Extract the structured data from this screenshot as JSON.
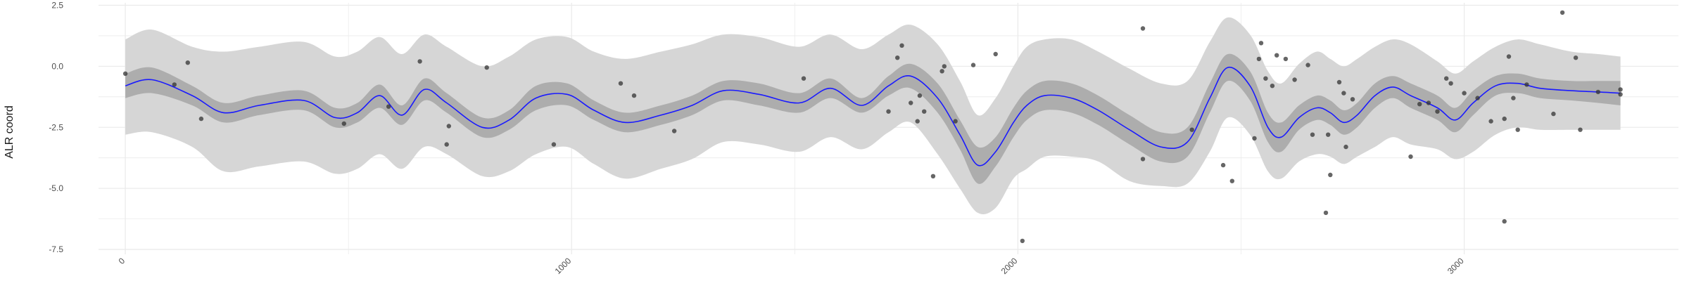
{
  "chart_data": {
    "type": "line",
    "title": "",
    "xlabel": "",
    "ylabel": "ALR coord",
    "xlim": [
      -60,
      3480
    ],
    "ylim": [
      -7.7,
      2.6
    ],
    "grid": true,
    "legend": "none",
    "x_ticks": [
      0,
      1000,
      2000,
      3000
    ],
    "x_tick_labels": [
      "0",
      "1000",
      "2000",
      "3000"
    ],
    "y_ticks": [
      2.5,
      0.0,
      -2.5,
      -5.0,
      -7.5
    ],
    "y_tick_labels": [
      "2.5",
      "0.0",
      "-2.5",
      "-5.0",
      "-7.5"
    ],
    "colors": {
      "line": "#1a1aff",
      "inner_band": "#adadad",
      "outer_band": "#d6d6d6",
      "points": "#333333",
      "grid": "#ebebeb"
    },
    "series": [
      {
        "kind": "smooth",
        "x": [
          0,
          60,
          150,
          220,
          300,
          400,
          470,
          520,
          570,
          620,
          670,
          720,
          800,
          860,
          920,
          990,
          1050,
          1120,
          1200,
          1270,
          1340,
          1420,
          1510,
          1580,
          1650,
          1710,
          1760,
          1820,
          1870,
          1910,
          1950,
          1990,
          2020,
          2060,
          2120,
          2180,
          2250,
          2320,
          2380,
          2430,
          2470,
          2520,
          2560,
          2590,
          2630,
          2670,
          2700,
          2730,
          2760,
          2800,
          2840,
          2880,
          2940,
          2980,
          3020,
          3070,
          3120,
          3170,
          3240,
          3300,
          3350
        ],
        "y": [
          -0.8,
          -0.55,
          -1.2,
          -1.9,
          -1.6,
          -1.4,
          -2.1,
          -1.9,
          -1.2,
          -2.0,
          -0.95,
          -1.5,
          -2.5,
          -2.2,
          -1.3,
          -1.15,
          -1.8,
          -2.3,
          -2.0,
          -1.6,
          -1.0,
          -1.15,
          -1.5,
          -0.9,
          -1.6,
          -0.8,
          -0.4,
          -1.3,
          -2.8,
          -4.05,
          -3.5,
          -2.3,
          -1.6,
          -1.2,
          -1.3,
          -1.8,
          -2.6,
          -3.3,
          -3.1,
          -1.3,
          -0.05,
          -0.8,
          -2.5,
          -2.9,
          -2.1,
          -1.7,
          -1.9,
          -2.3,
          -2.0,
          -1.2,
          -0.85,
          -1.2,
          -1.7,
          -2.2,
          -1.5,
          -0.8,
          -0.7,
          -0.9,
          -1.0,
          -1.05,
          -1.1
        ],
        "lower_inner": [
          -1.3,
          -1.1,
          -1.6,
          -2.3,
          -2.0,
          -1.8,
          -2.5,
          -2.3,
          -1.7,
          -2.4,
          -1.4,
          -1.9,
          -2.9,
          -2.6,
          -1.8,
          -1.6,
          -2.2,
          -2.7,
          -2.4,
          -2.0,
          -1.4,
          -1.6,
          -1.9,
          -1.3,
          -1.9,
          -1.2,
          -0.9,
          -1.9,
          -3.4,
          -4.8,
          -4.1,
          -2.9,
          -2.2,
          -1.8,
          -1.9,
          -2.4,
          -3.2,
          -3.9,
          -3.7,
          -1.9,
          -0.6,
          -1.4,
          -3.1,
          -3.5,
          -2.6,
          -2.2,
          -2.4,
          -2.8,
          -2.5,
          -1.7,
          -1.3,
          -1.7,
          -2.2,
          -2.7,
          -2.0,
          -1.2,
          -1.1,
          -1.3,
          -1.4,
          -1.5,
          -1.6
        ],
        "upper_inner": [
          -0.3,
          -0.05,
          -0.8,
          -1.5,
          -1.2,
          -1.0,
          -1.7,
          -1.5,
          -0.75,
          -1.6,
          -0.5,
          -1.1,
          -2.1,
          -1.8,
          -0.8,
          -0.7,
          -1.4,
          -1.9,
          -1.6,
          -1.2,
          -0.6,
          -0.7,
          -1.1,
          -0.5,
          -1.3,
          -0.4,
          0.1,
          -0.7,
          -2.2,
          -3.3,
          -2.9,
          -1.7,
          -1.0,
          -0.6,
          -0.7,
          -1.2,
          -2.0,
          -2.7,
          -2.5,
          -0.7,
          0.5,
          -0.2,
          -1.9,
          -2.3,
          -1.6,
          -1.2,
          -1.4,
          -1.8,
          -1.5,
          -0.7,
          -0.4,
          -0.7,
          -1.2,
          -1.7,
          -1.0,
          -0.4,
          -0.3,
          -0.5,
          -0.6,
          -0.6,
          -0.6
        ],
        "lower_outer": [
          -2.8,
          -2.7,
          -3.3,
          -4.3,
          -4.1,
          -3.9,
          -4.4,
          -4.2,
          -3.6,
          -4.2,
          -3.3,
          -3.6,
          -4.5,
          -4.3,
          -3.6,
          -3.3,
          -4.0,
          -4.6,
          -4.2,
          -3.8,
          -3.1,
          -3.2,
          -3.5,
          -2.9,
          -3.4,
          -2.7,
          -2.3,
          -3.6,
          -5.0,
          -6.0,
          -5.8,
          -4.6,
          -4.2,
          -3.7,
          -3.7,
          -3.9,
          -4.7,
          -4.9,
          -4.8,
          -3.5,
          -2.1,
          -2.8,
          -4.3,
          -4.6,
          -3.9,
          -3.6,
          -3.7,
          -4.0,
          -3.7,
          -3.3,
          -2.9,
          -3.2,
          -3.4,
          -3.8,
          -3.5,
          -2.8,
          -2.5,
          -2.6,
          -2.6,
          -2.6,
          -2.6
        ],
        "upper_outer": [
          1.1,
          1.5,
          0.8,
          0.6,
          0.8,
          1.0,
          0.4,
          0.6,
          1.2,
          0.5,
          1.3,
          0.8,
          0.0,
          0.4,
          1.1,
          1.2,
          0.6,
          0.3,
          0.6,
          0.9,
          1.3,
          1.2,
          0.8,
          1.3,
          0.7,
          1.3,
          1.7,
          0.9,
          -0.6,
          -2.0,
          -1.3,
          0.0,
          0.8,
          1.1,
          1.1,
          0.6,
          -0.1,
          -0.7,
          -0.6,
          1.0,
          2.0,
          1.3,
          -0.2,
          -0.7,
          0.1,
          0.6,
          0.3,
          0.0,
          0.3,
          0.8,
          1.1,
          0.9,
          0.2,
          -0.3,
          0.2,
          0.8,
          1.1,
          0.9,
          0.6,
          0.5,
          0.4
        ]
      },
      {
        "kind": "points",
        "points": [
          [
            0,
            -0.3
          ],
          [
            110,
            -0.75
          ],
          [
            140,
            0.15
          ],
          [
            170,
            -2.15
          ],
          [
            490,
            -2.35
          ],
          [
            590,
            -1.65
          ],
          [
            660,
            0.2
          ],
          [
            720,
            -3.2
          ],
          [
            725,
            -2.45
          ],
          [
            810,
            -0.05
          ],
          [
            960,
            -3.2
          ],
          [
            1110,
            -0.7
          ],
          [
            1140,
            -1.2
          ],
          [
            1230,
            -2.65
          ],
          [
            1520,
            -0.5
          ],
          [
            1710,
            -1.85
          ],
          [
            1730,
            0.35
          ],
          [
            1740,
            0.85
          ],
          [
            1760,
            -1.5
          ],
          [
            1775,
            -2.25
          ],
          [
            1780,
            -1.2
          ],
          [
            1790,
            -1.85
          ],
          [
            1810,
            -4.5
          ],
          [
            1830,
            -0.2
          ],
          [
            1835,
            0.0
          ],
          [
            1860,
            -2.25
          ],
          [
            1900,
            0.05
          ],
          [
            1950,
            0.5
          ],
          [
            2010,
            -7.15
          ],
          [
            2280,
            1.55
          ],
          [
            2280,
            -3.8
          ],
          [
            2390,
            -2.6
          ],
          [
            2460,
            -4.05
          ],
          [
            2480,
            -4.7
          ],
          [
            2530,
            -2.95
          ],
          [
            2540,
            0.3
          ],
          [
            2545,
            0.95
          ],
          [
            2555,
            -0.5
          ],
          [
            2570,
            -0.8
          ],
          [
            2580,
            0.45
          ],
          [
            2600,
            0.3
          ],
          [
            2620,
            -0.55
          ],
          [
            2650,
            0.05
          ],
          [
            2660,
            -2.8
          ],
          [
            2690,
            -6.0
          ],
          [
            2695,
            -2.8
          ],
          [
            2700,
            -4.45
          ],
          [
            2720,
            -0.65
          ],
          [
            2730,
            -1.1
          ],
          [
            2735,
            -3.3
          ],
          [
            2750,
            -1.35
          ],
          [
            2880,
            -3.7
          ],
          [
            2900,
            -1.55
          ],
          [
            2920,
            -1.5
          ],
          [
            2940,
            -1.85
          ],
          [
            2960,
            -0.5
          ],
          [
            2970,
            -0.7
          ],
          [
            3000,
            -1.1
          ],
          [
            3030,
            -1.3
          ],
          [
            3060,
            -2.25
          ],
          [
            3090,
            -2.15
          ],
          [
            3090,
            -6.35
          ],
          [
            3100,
            0.4
          ],
          [
            3110,
            -1.3
          ],
          [
            3120,
            -2.6
          ],
          [
            3140,
            -0.75
          ],
          [
            3200,
            -1.95
          ],
          [
            3220,
            2.2
          ],
          [
            3250,
            0.35
          ],
          [
            3260,
            -2.6
          ],
          [
            3300,
            -1.05
          ],
          [
            3350,
            -0.95
          ],
          [
            3350,
            -1.15
          ]
        ]
      }
    ]
  }
}
